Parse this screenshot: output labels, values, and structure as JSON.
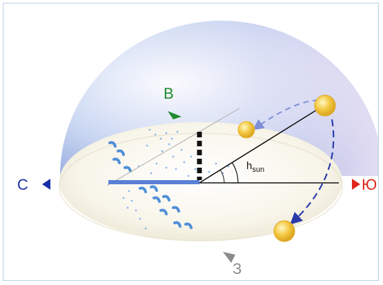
{
  "directions": {
    "north": {
      "label": "С",
      "color": "#1b2fa8"
    },
    "east": {
      "label": "В",
      "color": "#1f8a2e"
    },
    "south": {
      "label": "Ю",
      "color": "#e0261c"
    },
    "west": {
      "label": "З",
      "color": "#8c8c8c"
    }
  },
  "angle": {
    "symbol": "h",
    "subscript": "sun"
  },
  "colors": {
    "dome_blue": "#9fb6e6",
    "dome_pink": "#e7dbef",
    "ground": "#f7f3e6",
    "shadow_bar": "#5b7fd6",
    "footprints": "#4f8fd8",
    "sun": "#f4c842",
    "path_arrow": "#2a3aa8"
  }
}
